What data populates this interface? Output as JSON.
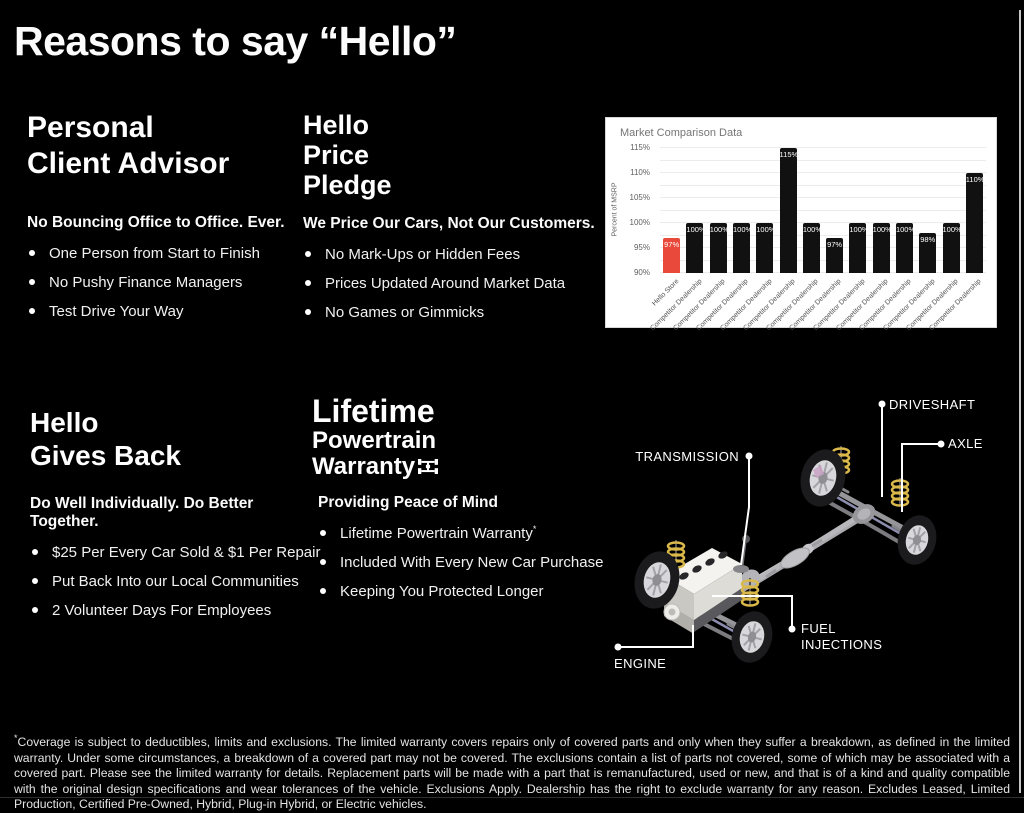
{
  "page": {
    "title": "Reasons to say “Hello”"
  },
  "sections": {
    "personal": {
      "heading_line1": "Personal",
      "heading_line2": "Client Advisor",
      "subheading": "No Bouncing Office to Office. Ever.",
      "bullets": [
        "One Person from Start to Finish",
        "No Pushy Finance Managers",
        "Test Drive Your Way"
      ]
    },
    "price": {
      "heading_line1": "Hello",
      "heading_line2": "Price",
      "heading_line3": "Pledge",
      "subheading": "We Price Our Cars, Not Our Customers.",
      "bullets": [
        "No Mark-Ups or Hidden Fees",
        "Prices Updated Around Market Data",
        "No Games or Gimmicks"
      ]
    },
    "gives_back": {
      "heading_line1": "Hello",
      "heading_line2": "Gives Back",
      "subheading": "Do Well Individually. Do Better Together.",
      "bullets": [
        "$25 Per Every Car Sold & $1 Per Repair",
        "Put Back Into our Local Communities",
        "2 Volunteer Days For Employees"
      ]
    },
    "warranty": {
      "heading_line1": "Lifetime",
      "heading_line2": "Powertrain",
      "heading_line3": "Warranty",
      "subheading": "Providing Peace of Mind",
      "bullets": [
        "Lifetime Powertrain Warranty",
        "Included With Every New Car Purchase",
        "Keeping You Protected Longer"
      ],
      "bullet1_sup": "*"
    }
  },
  "chart_data": {
    "type": "bar",
    "title": "Market Comparison Data",
    "ylabel": "Percent of MSRP",
    "ylim": [
      90,
      115
    ],
    "ytick_step": 5,
    "grid_step": 2.5,
    "grid": true,
    "legend": "none",
    "categories": [
      "Hello Store",
      "Competitor Dealership",
      "Competitor Dealership",
      "Competitor Dealership",
      "Competitor Dealership",
      "Competitor Dealership",
      "Competitor Dealership",
      "Competitor Dealership",
      "Competitor Dealership",
      "Competitor Dealership",
      "Competitor Dealership",
      "Competitor Dealership",
      "Competitor Dealership",
      "Competitor Dealership"
    ],
    "values": [
      97,
      100,
      100,
      100,
      100,
      115,
      100,
      97,
      100,
      100,
      100,
      98,
      100,
      110
    ],
    "value_label_suffix": "%",
    "highlight_index": 0,
    "highlight_color": "#e8493b",
    "bar_color": "#111111"
  },
  "diagram": {
    "labels": {
      "driveshaft": "DRIVESHAFT",
      "axle": "AXLE",
      "transmission": "TRANSMISSION",
      "fuel_line1": "FUEL",
      "fuel_line2": "INJECTIONS",
      "engine": "ENGINE"
    }
  },
  "footer": {
    "asterisk": "*",
    "disclaimer": "Coverage is subject to deductibles, limits and exclusions. The limited warranty covers repairs only of covered parts and only when they suffer a breakdown, as defined in the limited warranty. Under some circumstances, a breakdown of a covered part may not be covered. The exclusions contain a list of parts not covered, some of which may be associated with a covered part. Please see the limited warranty for details. Replacement parts will be made with a part that is remanufactured, used or new, and that is of a kind and quality compatible with the original design specifications and wear tolerances of the vehicle. Exclusions Apply. Dealership has the right to exclude warranty for any reason. Excludes Leased, Limited Production, Certified Pre-Owned, Hybrid, Plug-in Hybrid, or Electric vehicles."
  }
}
